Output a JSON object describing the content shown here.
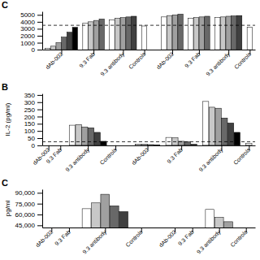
{
  "chart_data": [
    {
      "type": "bar",
      "title": "C",
      "categories": [
        "dAb-002",
        "9.3 Fab",
        "9.3 antibody",
        "Controls",
        "dAb-002",
        "9.3 Fab",
        "9.3 antibody",
        "Controls"
      ],
      "series": [
        {
          "color": "white",
          "values": [
            200,
            3800,
            4300,
            3400,
            4700,
            4500,
            4600,
            3200
          ]
        },
        {
          "color": "#c8c8c8",
          "values": [
            500,
            4000,
            4500,
            null,
            4900,
            4600,
            4700,
            null
          ]
        },
        {
          "color": "#a0a0a0",
          "values": [
            1000,
            4200,
            4600,
            null,
            5000,
            4700,
            4800,
            null
          ]
        },
        {
          "color": "#686868",
          "values": [
            1800,
            4400,
            4700,
            null,
            5100,
            4800,
            4850,
            null
          ]
        },
        {
          "color": "#404040",
          "values": [
            2500,
            null,
            4800,
            null,
            null,
            null,
            4900,
            null
          ]
        },
        {
          "color": "black",
          "values": [
            3200,
            null,
            null,
            null,
            null,
            null,
            null,
            null
          ]
        }
      ],
      "hline": 3500,
      "ylim": [
        0,
        5500
      ],
      "yticks": [
        0,
        1000,
        2000,
        3000,
        4000,
        5000
      ],
      "grid": false
    },
    {
      "type": "bar",
      "title": "B",
      "y_label": "IL-2 (pg/ml)",
      "categories": [
        "dAb-002",
        "9.3 Fab",
        "9.3 antibody",
        "Controls",
        "dAb-002",
        "9.3 Fab",
        "9.3 antibody",
        "Controls"
      ],
      "series": [
        {
          "color": "white",
          "values": [
            null,
            null,
            140,
            null,
            8,
            55,
            305,
            15
          ]
        },
        {
          "color": "#c8c8c8",
          "values": [
            null,
            null,
            145,
            null,
            7,
            52,
            265,
            null
          ]
        },
        {
          "color": "#a0a0a0",
          "values": [
            null,
            null,
            128,
            null,
            5,
            28,
            258,
            null
          ]
        },
        {
          "color": "#686868",
          "values": [
            null,
            null,
            122,
            null,
            2,
            25,
            190,
            null
          ]
        },
        {
          "color": "#404040",
          "values": [
            null,
            null,
            90,
            null,
            null,
            8,
            155,
            null
          ]
        },
        {
          "color": "black",
          "values": [
            null,
            null,
            28,
            null,
            null,
            null,
            90,
            null
          ]
        }
      ],
      "hline": 25,
      "ylim": [
        0,
        360
      ],
      "yticks": [
        0,
        50,
        100,
        150,
        200,
        250,
        300,
        350
      ],
      "grid": false
    },
    {
      "type": "bar",
      "title": "C",
      "y_label": "pg/ml",
      "categories": [
        "dAb-002",
        "9.3 Fab",
        "9.3 antibody",
        "Controls",
        "dAb-002",
        "9.3 Fab",
        "9.3 antibody",
        "Controls"
      ],
      "series": [
        {
          "color": "white",
          "values": [
            null,
            null,
            68000,
            null,
            null,
            null,
            67000,
            null
          ]
        },
        {
          "color": "#c8c8c8",
          "values": [
            null,
            null,
            76000,
            null,
            null,
            null,
            56000,
            null
          ]
        },
        {
          "color": "#a0a0a0",
          "values": [
            null,
            null,
            88000,
            null,
            null,
            null,
            50000,
            null
          ]
        },
        {
          "color": "#686868",
          "values": [
            null,
            null,
            72000,
            null,
            null,
            null,
            null,
            null
          ]
        },
        {
          "color": "#404040",
          "values": [
            null,
            null,
            64000,
            null,
            null,
            null,
            null,
            null
          ]
        }
      ],
      "ylim": [
        42000,
        95000
      ],
      "yticks": [
        {
          "value": 45000,
          "label": "45,000"
        },
        {
          "value": 60000,
          "label": "60,000"
        },
        {
          "value": 75000,
          "label": "75,000"
        },
        {
          "value": 90000,
          "label": "90,000"
        }
      ],
      "grid": false
    }
  ]
}
